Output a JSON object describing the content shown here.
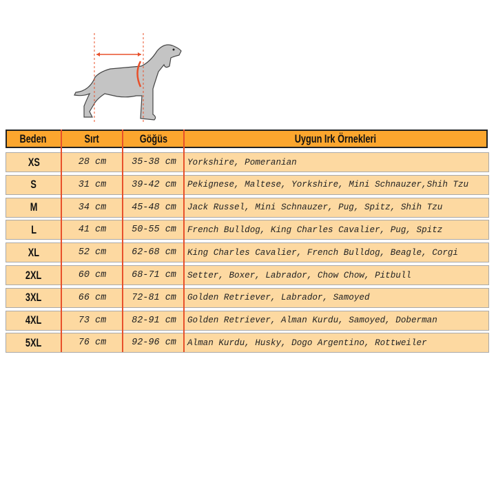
{
  "colors": {
    "header": "#fca62e",
    "row": "#fdd9a1",
    "divider": "#e8502a"
  },
  "illustration": {
    "icon": "dog-measurement-icon"
  },
  "header": {
    "size": "Beden",
    "back": "Sırt",
    "chest": "Göğüs",
    "breeds": "Uygun Irk Örnekleri"
  },
  "rows": [
    {
      "size": "XS",
      "back": "28 cm",
      "chest": "35-38 cm",
      "breeds": "Yorkshire, Pomeranian"
    },
    {
      "size": "S",
      "back": "31 cm",
      "chest": "39-42 cm",
      "breeds": "Pekignese, Maltese, Yorkshire, Mini Schnauzer,Shih Tzu"
    },
    {
      "size": "M",
      "back": "34 cm",
      "chest": "45-48 cm",
      "breeds": "Jack Russel, Mini Schnauzer, Pug, Spitz, Shih Tzu"
    },
    {
      "size": "L",
      "back": "41 cm",
      "chest": "50-55 cm",
      "breeds": "French Bulldog, King Charles Cavalier, Pug, Spitz"
    },
    {
      "size": "XL",
      "back": "52 cm",
      "chest": "62-68 cm",
      "breeds": "King Charles Cavalier, French Bulldog, Beagle, Corgi"
    },
    {
      "size": "2XL",
      "back": "60 cm",
      "chest": "68-71 cm",
      "breeds": "Setter, Boxer, Labrador, Chow Chow, Pitbull"
    },
    {
      "size": "3XL",
      "back": "66 cm",
      "chest": "72-81 cm",
      "breeds": "Golden Retriever, Labrador, Samoyed"
    },
    {
      "size": "4XL",
      "back": "73 cm",
      "chest": "82-91 cm",
      "breeds": "Golden Retriever, Alman Kurdu, Samoyed, Doberman"
    },
    {
      "size": "5XL",
      "back": "76 cm",
      "chest": "92-96 cm",
      "breeds": "Alman Kurdu, Husky, Dogo Argentino, Rottweiler"
    }
  ]
}
